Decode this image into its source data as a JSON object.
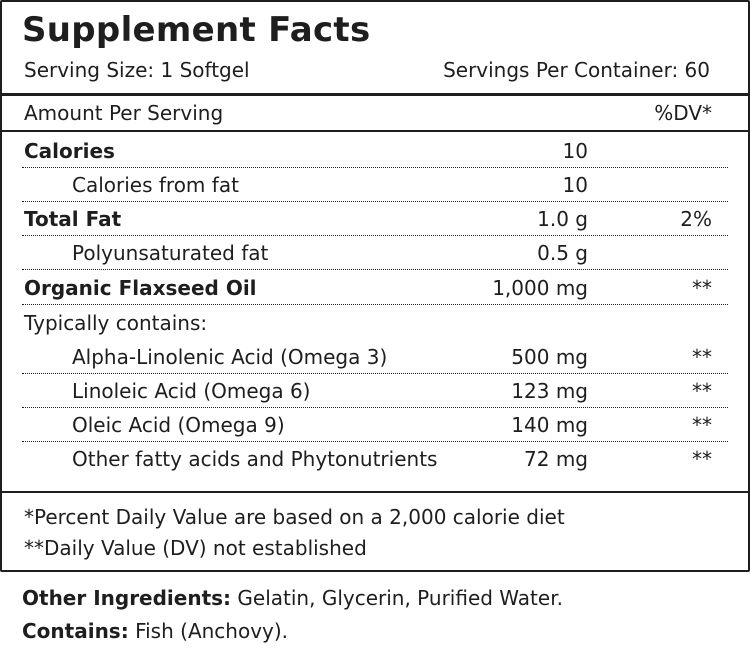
{
  "title": "Supplement Facts",
  "serving_size": "Serving Size: 1 Softgel",
  "servings_per_container": "Servings Per Container: 60",
  "header": {
    "amount_label": "Amount Per Serving",
    "dv_label": "%DV*"
  },
  "rows": [
    {
      "name": "Calories",
      "amount": "10",
      "dv": "",
      "bold": true,
      "indent": false
    },
    {
      "name": "Calories from fat",
      "amount": "10",
      "dv": "",
      "bold": false,
      "indent": true
    },
    {
      "name": "Total Fat",
      "amount": "1.0 g",
      "dv": "2%",
      "bold": true,
      "indent": false
    },
    {
      "name": "Polyunsaturated fat",
      "amount": "0.5 g",
      "dv": "",
      "bold": false,
      "indent": true
    },
    {
      "name": "Organic Flaxseed Oil",
      "amount": "1,000 mg",
      "dv": "**",
      "bold": true,
      "indent": false
    },
    {
      "name": "Typically contains:",
      "amount": "",
      "dv": "",
      "bold": false,
      "indent": false
    },
    {
      "name": "Alpha-Linolenic Acid (Omega 3)",
      "amount": "500 mg",
      "dv": "**",
      "bold": false,
      "indent": true
    },
    {
      "name": "Linoleic Acid (Omega 6)",
      "amount": "123 mg",
      "dv": "**",
      "bold": false,
      "indent": true
    },
    {
      "name": "Oleic Acid (Omega 9)",
      "amount": "140 mg",
      "dv": "**",
      "bold": false,
      "indent": true
    },
    {
      "name": "Other fatty acids and Phytonutrients",
      "amount": "72 mg",
      "dv": "**",
      "bold": false,
      "indent": true
    }
  ],
  "footnotes": [
    "*Percent Daily Value are based on a 2,000 calorie diet",
    "**Daily Value (DV) not established"
  ],
  "other_ingredients": {
    "label": "Other Ingredients:",
    "text": " Gelatin, Glycerin, Purified Water."
  },
  "contains": {
    "label": "Contains:",
    "text": " Fish (Anchovy)."
  }
}
